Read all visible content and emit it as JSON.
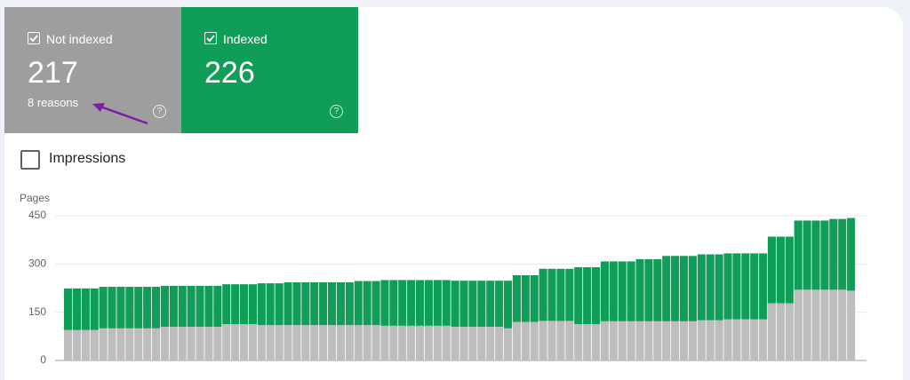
{
  "cards": [
    {
      "count": "217",
      "note": "8 reasons"
    },
    {
      "count": "226"
    }
  ],
  "impressions_toggle": "Impressions",
  "chart_data": {
    "type": "bar",
    "stacked": true,
    "ylabel": "Pages",
    "ylim": [
      0,
      450
    ],
    "yticks": [
      0,
      150,
      300,
      450
    ],
    "grid": true,
    "series": [
      {
        "name": "Not indexed",
        "color": "#bdbdbd",
        "values": [
          95,
          95,
          95,
          95,
          100,
          100,
          100,
          100,
          100,
          100,
          100,
          105,
          105,
          105,
          105,
          105,
          105,
          105,
          113,
          113,
          113,
          113,
          110,
          110,
          110,
          110,
          110,
          110,
          110,
          110,
          110,
          110,
          110,
          110,
          110,
          110,
          108,
          108,
          108,
          108,
          108,
          108,
          108,
          108,
          105,
          105,
          105,
          105,
          105,
          105,
          100,
          120,
          120,
          120,
          123,
          123,
          123,
          123,
          113,
          113,
          113,
          122,
          122,
          122,
          122,
          122,
          122,
          122,
          122,
          122,
          122,
          122,
          125,
          125,
          125,
          128,
          128,
          128,
          128,
          128,
          178,
          178,
          178,
          220,
          220,
          220,
          220,
          220,
          220,
          217
        ]
      },
      {
        "name": "Indexed",
        "color": "#0f9d58",
        "values": [
          129,
          129,
          129,
          129,
          129,
          129,
          129,
          129,
          129,
          129,
          129,
          127,
          127,
          127,
          127,
          127,
          127,
          127,
          124,
          124,
          124,
          124,
          130,
          130,
          130,
          133,
          133,
          133,
          133,
          133,
          133,
          133,
          133,
          137,
          137,
          137,
          142,
          142,
          142,
          142,
          142,
          142,
          142,
          142,
          143,
          143,
          143,
          143,
          143,
          143,
          148,
          145,
          145,
          145,
          162,
          162,
          162,
          162,
          177,
          177,
          177,
          186,
          186,
          186,
          186,
          193,
          193,
          193,
          203,
          203,
          203,
          203,
          205,
          205,
          205,
          205,
          205,
          205,
          205,
          205,
          207,
          207,
          207,
          215,
          215,
          215,
          215,
          220,
          220,
          226
        ]
      }
    ]
  }
}
